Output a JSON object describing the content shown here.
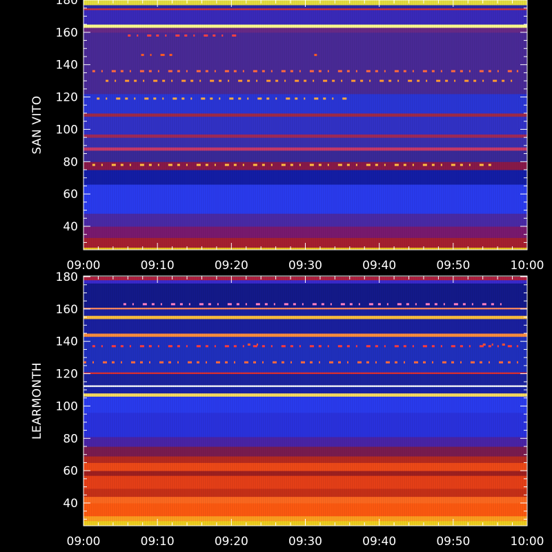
{
  "chart_data": [
    {
      "type": "heatmap",
      "ylabel": "SAN VITO",
      "x_ticks": [
        "09:00",
        "09:10",
        "09:20",
        "09:30",
        "09:40",
        "09:50",
        "10:00"
      ],
      "x_range": [
        "09:00",
        "10:00"
      ],
      "y_ticks": [
        40,
        60,
        80,
        100,
        120,
        140,
        160,
        180
      ],
      "y_range": [
        25,
        180
      ],
      "bands": [
        {
          "y0": 25,
          "y1": 27,
          "color": "#e8c020"
        },
        {
          "y0": 27,
          "y1": 33,
          "color": "#a82030"
        },
        {
          "y0": 33,
          "y1": 40,
          "color": "#7a1a70"
        },
        {
          "y0": 40,
          "y1": 48,
          "color": "#4a2aa8"
        },
        {
          "y0": 48,
          "y1": 66,
          "color": "#2a3cf0"
        },
        {
          "y0": 66,
          "y1": 75,
          "color": "#141ea8"
        },
        {
          "y0": 75,
          "y1": 80,
          "color": "#8a1a4a"
        },
        {
          "y0": 80,
          "y1": 87,
          "color": "#3a2a9a"
        },
        {
          "y0": 87,
          "y1": 89,
          "color": "#c83a6a"
        },
        {
          "y0": 89,
          "y1": 95,
          "color": "#3a30b0"
        },
        {
          "y0": 95,
          "y1": 97,
          "color": "#a02a5a"
        },
        {
          "y0": 97,
          "y1": 108,
          "color": "#3232c8"
        },
        {
          "y0": 108,
          "y1": 110,
          "color": "#a02a4a"
        },
        {
          "y0": 110,
          "y1": 122,
          "color": "#2a36d8"
        },
        {
          "y0": 122,
          "y1": 160,
          "color": "#4a2a98"
        },
        {
          "y0": 160,
          "y1": 163,
          "color": "#6a2a88"
        },
        {
          "y0": 163,
          "y1": 165,
          "color": "#ffff90"
        },
        {
          "y0": 165,
          "y1": 174,
          "color": "#3a2abc"
        },
        {
          "y0": 174,
          "y1": 175,
          "color": "#d03040"
        },
        {
          "y0": 175,
          "y1": 177,
          "color": "#2a2aa8"
        },
        {
          "y0": 177,
          "y1": 180,
          "color": "#e8e040"
        }
      ],
      "bursts": [
        {
          "y": 146,
          "x0": 0.13,
          "x1": 0.21,
          "color": "#ff5a20"
        },
        {
          "y": 146,
          "x0": 0.52,
          "x1": 0.54,
          "color": "#ff5a20"
        },
        {
          "y": 158,
          "x0": 0.1,
          "x1": 0.35,
          "color": "#ff4040"
        },
        {
          "y": 136,
          "x0": 0.02,
          "x1": 0.98,
          "color": "#ff6a3a"
        },
        {
          "y": 130,
          "x0": 0.05,
          "x1": 0.97,
          "color": "#ff9a30"
        },
        {
          "y": 119,
          "x0": 0.03,
          "x1": 0.6,
          "color": "#ffaa40"
        },
        {
          "y": 78,
          "x0": 0.02,
          "x1": 0.92,
          "color": "#ffc040"
        }
      ]
    },
    {
      "type": "heatmap",
      "ylabel": "LEARMONTH",
      "x_ticks": [
        "09:00",
        "09:10",
        "09:20",
        "09:30",
        "09:40",
        "09:50",
        "10:00"
      ],
      "x_range": [
        "09:00",
        "10:00"
      ],
      "y_ticks": [
        40,
        60,
        80,
        100,
        120,
        140,
        160,
        180
      ],
      "y_range": [
        25,
        180
      ],
      "bands": [
        {
          "y0": 25,
          "y1": 29,
          "color": "#f0d020"
        },
        {
          "y0": 29,
          "y1": 32,
          "color": "#ffa020"
        },
        {
          "y0": 32,
          "y1": 40,
          "color": "#ff5a10"
        },
        {
          "y0": 40,
          "y1": 44,
          "color": "#ff6a20"
        },
        {
          "y0": 44,
          "y1": 49,
          "color": "#c83018"
        },
        {
          "y0": 49,
          "y1": 57,
          "color": "#e84018"
        },
        {
          "y0": 57,
          "y1": 60,
          "color": "#a02020"
        },
        {
          "y0": 60,
          "y1": 65,
          "color": "#f04a18"
        },
        {
          "y0": 65,
          "y1": 69,
          "color": "#b82a20"
        },
        {
          "y0": 69,
          "y1": 75,
          "color": "#7a1c50"
        },
        {
          "y0": 75,
          "y1": 81,
          "color": "#4a24a8"
        },
        {
          "y0": 81,
          "y1": 96,
          "color": "#2a32e0"
        },
        {
          "y0": 96,
          "y1": 106,
          "color": "#2a3cf0"
        },
        {
          "y0": 106,
          "y1": 108,
          "color": "#ffe060"
        },
        {
          "y0": 108,
          "y1": 112,
          "color": "#1a24a8"
        },
        {
          "y0": 112,
          "y1": 113,
          "color": "#ffffff"
        },
        {
          "y0": 113,
          "y1": 120,
          "color": "#1c24a0"
        },
        {
          "y0": 120,
          "y1": 121,
          "color": "#e03030"
        },
        {
          "y0": 121,
          "y1": 143,
          "color": "#2030c0"
        },
        {
          "y0": 143,
          "y1": 145,
          "color": "#ff9040"
        },
        {
          "y0": 145,
          "y1": 154,
          "color": "#1a20a0"
        },
        {
          "y0": 154,
          "y1": 156,
          "color": "#ffc040"
        },
        {
          "y0": 156,
          "y1": 160,
          "color": "#1a20a0"
        },
        {
          "y0": 160,
          "y1": 161,
          "color": "#ff8a60"
        },
        {
          "y0": 161,
          "y1": 176,
          "color": "#141a8c"
        },
        {
          "y0": 176,
          "y1": 178,
          "color": "#3a2ad0"
        },
        {
          "y0": 178,
          "y1": 180,
          "color": "#b02040"
        }
      ],
      "bursts": [
        {
          "y": 137,
          "x0": 0.02,
          "x1": 0.98,
          "color": "#ff3a3a"
        },
        {
          "y": 127,
          "x0": 0.0,
          "x1": 0.98,
          "color": "#ff6a3a"
        },
        {
          "y": 138,
          "x0": 0.37,
          "x1": 0.4,
          "color": "#ff5030"
        },
        {
          "y": 138,
          "x0": 0.9,
          "x1": 0.95,
          "color": "#ff5030"
        },
        {
          "y": 163,
          "x0": 0.09,
          "x1": 0.95,
          "color": "#ff80c0"
        }
      ]
    }
  ]
}
